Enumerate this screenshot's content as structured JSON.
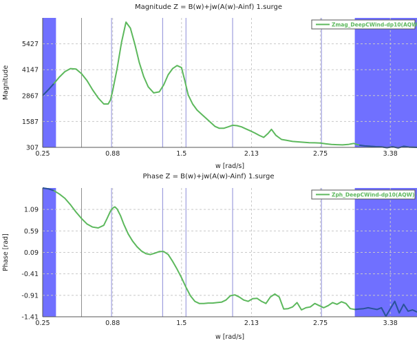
{
  "chart_data": [
    {
      "type": "line",
      "title": "Magnitude Z = B(w)+jw(A(w)-Ainf) 1.surge",
      "xlabel": "w [rad/s]",
      "ylabel": "Magnitude",
      "xlim": [
        0.25,
        3.62
      ],
      "ylim": [
        307,
        6707
      ],
      "xticks": [
        0.25,
        0.88,
        1.5,
        2.13,
        2.75,
        3.38
      ],
      "xtick_labels": [
        "0.25",
        "0.88",
        "1.5",
        "2.13",
        "2.75",
        "3.38"
      ],
      "yticks": [
        307,
        1587,
        2867,
        4147,
        5427
      ],
      "ytick_labels": [
        "307",
        "1587",
        "2867",
        "4147",
        "5427"
      ],
      "grid": true,
      "legend_position": "top-right",
      "shaded_x_ranges": [
        [
          0.25,
          0.37
        ],
        [
          3.06,
          3.62
        ]
      ],
      "vertical_lines": [
        {
          "x": 0.6,
          "color": "#8e8e8e",
          "style": "solid"
        },
        {
          "x": 0.87,
          "color": "#8a8ad8",
          "style": "solid"
        },
        {
          "x": 1.33,
          "color": "#8a8ad8",
          "style": "solid"
        },
        {
          "x": 1.54,
          "color": "#8a8ad8",
          "style": "solid"
        },
        {
          "x": 1.96,
          "color": "#8a8ad8",
          "style": "solid"
        },
        {
          "x": 2.76,
          "color": "#8a8ad8",
          "style": "solid"
        }
      ],
      "series": [
        {
          "name": "Zmag_DeepCWind-dp10(AQW)",
          "color": "#5cb85c",
          "x": [
            0.25,
            0.3,
            0.35,
            0.4,
            0.45,
            0.5,
            0.55,
            0.6,
            0.65,
            0.7,
            0.75,
            0.8,
            0.84,
            0.86,
            0.88,
            0.92,
            0.96,
            1.0,
            1.04,
            1.08,
            1.12,
            1.16,
            1.2,
            1.25,
            1.3,
            1.34,
            1.38,
            1.42,
            1.46,
            1.5,
            1.53,
            1.56,
            1.6,
            1.64,
            1.68,
            1.72,
            1.76,
            1.8,
            1.84,
            1.88,
            1.92,
            1.96,
            2.0,
            2.04,
            2.08,
            2.12,
            2.16,
            2.2,
            2.24,
            2.28,
            2.31,
            2.35,
            2.4,
            2.45,
            2.5,
            2.55,
            2.6,
            2.65,
            2.7,
            2.75,
            2.8,
            2.85,
            2.9,
            2.95,
            3.0,
            3.05,
            3.1,
            3.15,
            3.2,
            3.25,
            3.3,
            3.35,
            3.4,
            3.45,
            3.5,
            3.55,
            3.6,
            3.62
          ],
          "y": [
            2867,
            3150,
            3450,
            3780,
            4050,
            4200,
            4180,
            3950,
            3600,
            3150,
            2750,
            2450,
            2450,
            2650,
            3100,
            4200,
            5500,
            6500,
            6200,
            5400,
            4500,
            3800,
            3300,
            3000,
            3050,
            3400,
            3900,
            4200,
            4350,
            4250,
            3600,
            2900,
            2450,
            2150,
            1950,
            1750,
            1550,
            1350,
            1250,
            1250,
            1320,
            1400,
            1380,
            1320,
            1220,
            1120,
            1020,
            900,
            800,
            1000,
            1200,
            900,
            700,
            650,
            600,
            580,
            560,
            540,
            530,
            520,
            480,
            450,
            440,
            430,
            450,
            500,
            420,
            380,
            360,
            340,
            330,
            290,
            340,
            280,
            360,
            320,
            310,
            307
          ]
        }
      ]
    },
    {
      "type": "line",
      "title": "Phase Z = B(w)+jw(A(w)-Ainf) 1.surge",
      "xlabel": "w [rad/s]",
      "ylabel": "Phase [rad]",
      "xlim": [
        0.25,
        3.62
      ],
      "ylim": [
        -1.41,
        1.59
      ],
      "xticks": [
        0.25,
        0.88,
        1.5,
        2.13,
        2.75,
        3.38
      ],
      "xtick_labels": [
        "0.25",
        "0.88",
        "1.5",
        "2.13",
        "2.75",
        "3.38"
      ],
      "yticks": [
        -1.41,
        -0.91,
        -0.41,
        0.09,
        0.59,
        1.09
      ],
      "ytick_labels": [
        "-1.41",
        "-0.91",
        "-0.41",
        "0.09",
        "0.59",
        "1.09"
      ],
      "grid": true,
      "legend_position": "top-right",
      "shaded_x_ranges": [
        [
          0.25,
          0.37
        ],
        [
          3.06,
          3.62
        ]
      ],
      "vertical_lines": [
        {
          "x": 0.6,
          "color": "#8e8e8e",
          "style": "solid"
        },
        {
          "x": 0.87,
          "color": "#8a8ad8",
          "style": "solid"
        },
        {
          "x": 1.33,
          "color": "#8a8ad8",
          "style": "solid"
        },
        {
          "x": 1.54,
          "color": "#8a8ad8",
          "style": "solid"
        },
        {
          "x": 1.96,
          "color": "#8a8ad8",
          "style": "solid"
        },
        {
          "x": 2.76,
          "color": "#8a8ad8",
          "style": "solid"
        }
      ],
      "series": [
        {
          "name": "Zph_DeepCWind-dp10(AQW) (rad)",
          "color": "#5cb85c",
          "x": [
            0.25,
            0.3,
            0.35,
            0.4,
            0.45,
            0.5,
            0.55,
            0.6,
            0.65,
            0.7,
            0.75,
            0.8,
            0.83,
            0.86,
            0.88,
            0.9,
            0.92,
            0.95,
            0.98,
            1.02,
            1.06,
            1.1,
            1.14,
            1.18,
            1.22,
            1.26,
            1.3,
            1.34,
            1.38,
            1.42,
            1.46,
            1.5,
            1.54,
            1.58,
            1.62,
            1.66,
            1.7,
            1.74,
            1.78,
            1.82,
            1.86,
            1.9,
            1.94,
            1.98,
            2.02,
            2.06,
            2.1,
            2.14,
            2.18,
            2.22,
            2.26,
            2.3,
            2.34,
            2.38,
            2.42,
            2.46,
            2.5,
            2.54,
            2.58,
            2.62,
            2.66,
            2.7,
            2.74,
            2.78,
            2.82,
            2.86,
            2.9,
            2.94,
            2.98,
            3.02,
            3.06,
            3.1,
            3.14,
            3.18,
            3.22,
            3.26,
            3.3,
            3.32,
            3.34,
            3.38,
            3.42,
            3.46,
            3.5,
            3.54,
            3.58,
            3.62
          ],
          "y": [
            1.59,
            1.57,
            1.53,
            1.45,
            1.35,
            1.2,
            1.03,
            0.88,
            0.75,
            0.68,
            0.66,
            0.72,
            0.88,
            1.05,
            1.12,
            1.15,
            1.1,
            0.95,
            0.75,
            0.52,
            0.35,
            0.22,
            0.12,
            0.06,
            0.04,
            0.07,
            0.11,
            0.11,
            0.04,
            -0.12,
            -0.3,
            -0.5,
            -0.72,
            -0.92,
            -1.05,
            -1.1,
            -1.1,
            -1.09,
            -1.09,
            -1.08,
            -1.07,
            -1.02,
            -0.92,
            -0.9,
            -0.95,
            -1.02,
            -1.05,
            -0.99,
            -0.98,
            -1.05,
            -1.1,
            -0.95,
            -0.88,
            -0.95,
            -1.23,
            -1.22,
            -1.18,
            -1.08,
            -1.25,
            -1.2,
            -1.18,
            -1.1,
            -1.15,
            -1.2,
            -1.15,
            -1.08,
            -1.12,
            -1.06,
            -1.1,
            -1.22,
            -1.24,
            -1.23,
            -1.22,
            -1.2,
            -1.22,
            -1.24,
            -1.2,
            -1.3,
            -1.4,
            -1.22,
            -1.05,
            -1.32,
            -1.12,
            -1.28,
            -1.25,
            -1.3
          ]
        }
      ]
    }
  ]
}
